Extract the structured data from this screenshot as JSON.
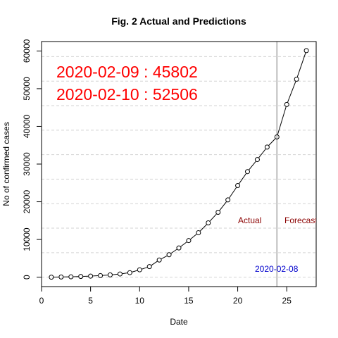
{
  "chart_data": {
    "type": "line",
    "title": "Fig. 2 Actual and Predictions",
    "xlabel": "Date",
    "ylabel": "No of confirmed cases",
    "xlim": [
      0,
      28
    ],
    "ylim": [
      -2500,
      62500
    ],
    "x_ticks": [
      0,
      5,
      10,
      15,
      20,
      25
    ],
    "y_ticks": [
      0,
      10000,
      20000,
      30000,
      40000,
      50000,
      60000
    ],
    "grid": "horizontal dashed",
    "x": [
      1,
      2,
      3,
      4,
      5,
      6,
      7,
      8,
      9,
      10,
      11,
      12,
      13,
      14,
      15,
      16,
      17,
      18,
      19,
      20,
      21,
      22,
      23,
      24,
      25,
      26,
      27
    ],
    "y": [
      0,
      50,
      100,
      180,
      280,
      420,
      600,
      850,
      1200,
      1950,
      2800,
      4550,
      5950,
      7750,
      9700,
      11800,
      14400,
      17200,
      20500,
      24300,
      28000,
      31200,
      34500,
      37200,
      45802,
      52506,
      60100
    ],
    "vline": {
      "x": 24,
      "color": "#bebebe"
    },
    "annotations": {
      "prediction_1": "2020-02-09 : 45802",
      "prediction_2": "2020-02-10 : 52506",
      "actual_label": "Actual",
      "forecast_label": "Forecast",
      "date_label": "2020-02-08"
    },
    "colors": {
      "prediction_text": "#ff0000",
      "region_labels": "#8b0000",
      "date_label": "#0000cd",
      "grid": "#d3d3d3",
      "points": "#000000"
    }
  }
}
